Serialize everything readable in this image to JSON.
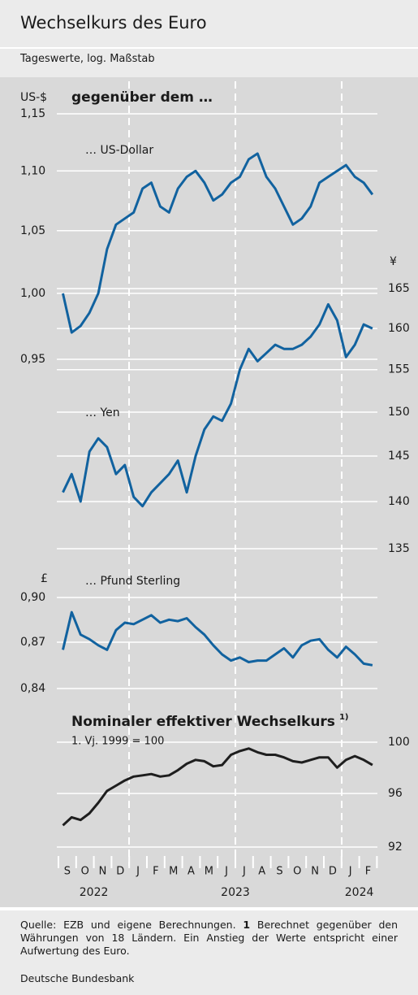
{
  "header": {
    "title": "Wechselkurs des Euro",
    "subtitle": "Tageswerte, log. Maßstab"
  },
  "chart_data": [
    {
      "type": "line",
      "title": "gegenüber dem …",
      "y_label": "US-$",
      "log_scale": true,
      "grid": true,
      "series": [
        {
          "name": "… US-Dollar",
          "color": "#11629f",
          "values": [
            1.0,
            0.97,
            0.975,
            0.985,
            1.0,
            1.035,
            1.055,
            1.06,
            1.065,
            1.085,
            1.09,
            1.07,
            1.065,
            1.085,
            1.095,
            1.1,
            1.09,
            1.075,
            1.08,
            1.09,
            1.095,
            1.11,
            1.115,
            1.095,
            1.085,
            1.07,
            1.055,
            1.06,
            1.07,
            1.09,
            1.095,
            1.1,
            1.105,
            1.095,
            1.09,
            1.08
          ]
        }
      ],
      "ylim": [
        0.95,
        1.15
      ],
      "yticks": [
        {
          "value": 0.95,
          "label": "0,95"
        },
        {
          "value": 1.0,
          "label": "1,00"
        },
        {
          "value": 1.05,
          "label": "1,05"
        },
        {
          "value": 1.1,
          "label": "1,10"
        },
        {
          "value": 1.15,
          "label": "1,15"
        }
      ]
    },
    {
      "type": "line",
      "y_label": "¥",
      "log_scale": true,
      "grid": true,
      "series": [
        {
          "name": "… Yen",
          "color": "#11629f",
          "values": [
            141,
            143,
            140,
            145.5,
            147,
            146,
            143,
            144,
            140.5,
            139.5,
            141,
            142,
            143,
            144.5,
            141,
            145,
            148,
            149.5,
            149,
            151,
            155,
            157.5,
            156,
            157,
            158,
            157.5,
            157.5,
            158,
            159,
            160.5,
            163,
            161,
            156.5,
            158,
            160.5,
            160
          ]
        }
      ],
      "ylim": [
        135,
        165
      ],
      "yticks": [
        135,
        140,
        145,
        150,
        155,
        160,
        165
      ]
    },
    {
      "type": "line",
      "y_label": "£",
      "log_scale": true,
      "grid": true,
      "series": [
        {
          "name": "… Pfund Sterling",
          "color": "#11629f",
          "values": [
            0.865,
            0.89,
            0.875,
            0.872,
            0.868,
            0.865,
            0.878,
            0.883,
            0.882,
            0.885,
            0.888,
            0.883,
            0.885,
            0.884,
            0.886,
            0.88,
            0.875,
            0.868,
            0.862,
            0.858,
            0.86,
            0.857,
            0.858,
            0.858,
            0.862,
            0.866,
            0.86,
            0.868,
            0.871,
            0.872,
            0.865,
            0.86,
            0.867,
            0.862,
            0.856,
            0.855
          ]
        }
      ],
      "ylim": [
        0.84,
        0.9
      ],
      "yticks": [
        {
          "value": 0.84,
          "label": "0,84"
        },
        {
          "value": 0.87,
          "label": "0,87"
        },
        {
          "value": 0.9,
          "label": "0,90"
        }
      ]
    },
    {
      "type": "line",
      "title": "Nominaler effektiver Wechselkurs",
      "title_note": "1)",
      "subtitle": "1. Vj. 1999 = 100",
      "log_scale": true,
      "grid": true,
      "series": [
        {
          "color": "#1e1e1e",
          "values": [
            93.6,
            94.2,
            94,
            94.5,
            95.3,
            96.2,
            96.6,
            97,
            97.3,
            97.4,
            97.5,
            97.3,
            97.4,
            97.8,
            98.3,
            98.6,
            98.5,
            98.1,
            98.2,
            99,
            99.3,
            99.5,
            99.2,
            99,
            99,
            98.8,
            98.5,
            98.4,
            98.6,
            98.8,
            98.8,
            98,
            98.6,
            98.9,
            98.6,
            98.2
          ]
        }
      ],
      "ylim": [
        92,
        100
      ],
      "yticks": [
        92,
        96,
        100
      ]
    }
  ],
  "x_axis": {
    "months": [
      "S",
      "O",
      "N",
      "D",
      "J",
      "F",
      "M",
      "A",
      "M",
      "J",
      "J",
      "A",
      "S",
      "O",
      "N",
      "D",
      "J",
      "F"
    ],
    "years": [
      "2022",
      "2023",
      "2024"
    ]
  },
  "footer": {
    "source": "Quelle: EZB und eigene Berechnungen.",
    "note_number": "1",
    "note": "Berechnet gegenüber den Währungen von 18 Ländern. Ein Anstieg der Werte entspricht einer Aufwertung des Euro.",
    "publisher": "Deutsche Bundesbank"
  }
}
